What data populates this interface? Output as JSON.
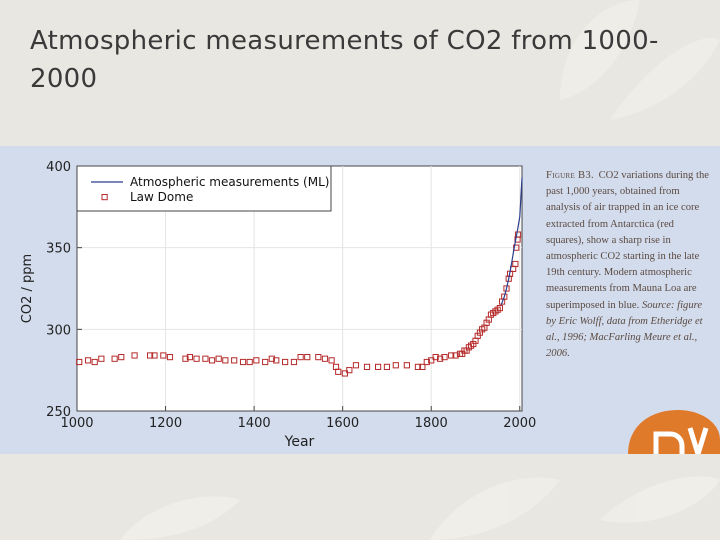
{
  "slide": {
    "title": "Atmospheric measurements of CO2 from 1000-2000"
  },
  "caption": {
    "label": "Figure B3.",
    "body": "CO2 variations during the past 1,000 years, obtained from analysis of air trapped in an ice core extracted from Antarctica (red squares), show a sharp rise in atmospheric CO2 starting in the late 19th century. Modern atmospheric measurements from Mauna Loa are superimposed in blue.",
    "source": "Source: figure by Eric Wolff, data from Etheridge et al., 1996; MacFarling Meure et al., 2006."
  },
  "colors": {
    "panel_bg": "#d3dced",
    "plot_bg": "#ffffff",
    "law_dome": "#b52a2a",
    "mauna_loa": "#2a3d8f",
    "logo": "#e07a2b"
  },
  "chart_data": {
    "type": "scatter",
    "xlabel": "Year",
    "ylabel": "CO2 / ppm",
    "xlim": [
      1000,
      2005
    ],
    "ylim": [
      250,
      400
    ],
    "xticks": [
      1000,
      1200,
      1400,
      1600,
      1800,
      2000
    ],
    "yticks": [
      250,
      300,
      350,
      400
    ],
    "grid": true,
    "legend_position": "top-left",
    "series": [
      {
        "name": "Atmospheric measurements (ML)",
        "kind": "line",
        "x": [
          1958,
          1965,
          1970,
          1975,
          1980,
          1985,
          1990,
          1995,
          2000,
          2005
        ],
        "y": [
          315,
          320,
          325,
          331,
          338,
          346,
          354,
          361,
          369,
          393
        ]
      },
      {
        "name": "Law Dome",
        "kind": "marker-square",
        "x": [
          1005,
          1025,
          1040,
          1055,
          1085,
          1100,
          1130,
          1165,
          1175,
          1195,
          1210,
          1245,
          1255,
          1270,
          1290,
          1305,
          1320,
          1335,
          1355,
          1375,
          1390,
          1405,
          1425,
          1440,
          1450,
          1470,
          1490,
          1505,
          1520,
          1545,
          1560,
          1575,
          1585,
          1590,
          1605,
          1615,
          1630,
          1655,
          1680,
          1700,
          1720,
          1745,
          1770,
          1780,
          1790,
          1800,
          1810,
          1820,
          1830,
          1845,
          1855,
          1865,
          1870,
          1875,
          1880,
          1885,
          1890,
          1895,
          1900,
          1905,
          1910,
          1915,
          1920,
          1925,
          1930,
          1935,
          1940,
          1945,
          1950,
          1955,
          1960,
          1965,
          1970,
          1975,
          1978,
          1985,
          1990,
          1992,
          1995,
          1996
        ],
        "y": [
          280,
          281,
          280,
          282,
          282,
          283,
          284,
          284,
          284,
          284,
          283,
          282,
          283,
          282,
          282,
          281,
          282,
          281,
          281,
          280,
          280,
          281,
          280,
          282,
          281,
          280,
          280,
          283,
          283,
          283,
          282,
          281,
          277,
          274,
          273,
          275,
          278,
          277,
          277,
          277,
          278,
          278,
          277,
          277,
          280,
          281,
          283,
          282,
          283,
          284,
          284,
          285,
          285,
          287,
          287,
          289,
          290,
          291,
          293,
          296,
          298,
          300,
          301,
          304,
          306,
          309,
          310,
          311,
          312,
          313,
          317,
          320,
          325,
          331,
          334,
          337,
          340,
          350,
          355,
          358
        ]
      }
    ]
  }
}
